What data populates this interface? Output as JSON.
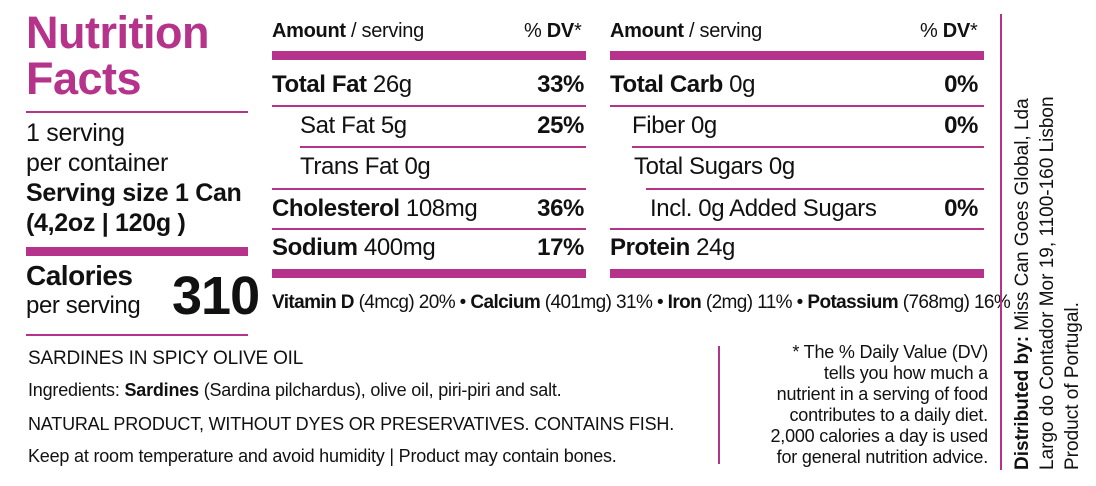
{
  "title": {
    "line1": "Nutrition",
    "line2": "Facts"
  },
  "servings": {
    "line1": "1 serving",
    "line2": "per container",
    "size_line1": "Serving size 1 Can",
    "size_line2": "(4,2oz | 120g )"
  },
  "calories": {
    "label": "Calories",
    "sub": "per serving",
    "value": "310"
  },
  "headers": {
    "amount": "Amount",
    "slash": " / serving",
    "pct": "% ",
    "dv": "DV",
    "star": "*"
  },
  "left_table": [
    {
      "name": "Total Fat",
      "amount": " 26g",
      "dv": "33%",
      "bold": true
    },
    {
      "name": "Sat Fat",
      "amount": " 5g",
      "dv": "25%",
      "bold": false
    },
    {
      "name": "Trans Fat",
      "amount": " 0g",
      "dv": "",
      "bold": false
    },
    {
      "name": "Cholesterol",
      "amount": " 108mg",
      "dv": "36%",
      "bold": true
    },
    {
      "name": "Sodium",
      "amount": " 400mg",
      "dv": "17%",
      "bold": true
    }
  ],
  "right_table": [
    {
      "name": "Total Carb",
      "amount": " 0g",
      "dv": "0%",
      "bold": true
    },
    {
      "name": "Fiber",
      "amount": " 0g",
      "dv": "0%",
      "bold": false
    },
    {
      "name": "Total Sugars",
      "amount": " 0g",
      "dv": "",
      "bold": false
    },
    {
      "name": "Incl. 0g Added Sugars",
      "amount": "",
      "dv": "0%",
      "bold": false
    },
    {
      "name": "Protein",
      "amount": " 24g",
      "dv": "",
      "bold": true
    }
  ],
  "vitamins": {
    "vitd_name": "Vitamin D",
    "vitd_rest": " (4mcg) 20% • ",
    "ca_name": "Calcium",
    "ca_rest": " (401mg) 31% • ",
    "fe_name": "Iron",
    "fe_rest": " (2mg) 11% • ",
    "k_name": "Potassium",
    "k_rest": " (768mg) 16%"
  },
  "product": {
    "name": "SARDINES IN SPICY OLIVE OIL",
    "ingredients_label": "Ingredients: ",
    "ingredients_main": "Sardines",
    "ingredients_rest": " (Sardina pilchardus), olive oil, piri-piri and salt.",
    "natural": "NATURAL PRODUCT, WITHOUT DYES OR PRESERVATIVES. CONTAINS FISH.",
    "storage": "Keep at room temperature and avoid humidity | Product may contain bones."
  },
  "dv_note": {
    "lines": [
      "* The % Daily Value (DV)",
      "tells you how much a",
      "nutrient in a serving of food",
      "contributes to a daily diet.",
      "2,000 calories a day is used",
      "for general nutrition advice."
    ]
  },
  "distributor": {
    "label": "Distributed by:",
    "company": " Miss Can Goes Global, Lda",
    "address": "Largo do Contador Mor 19, 1100-160 Lisbon",
    "origin": "Product of Portugal."
  },
  "colors": {
    "accent": "#b5338a",
    "text": "#111111"
  }
}
